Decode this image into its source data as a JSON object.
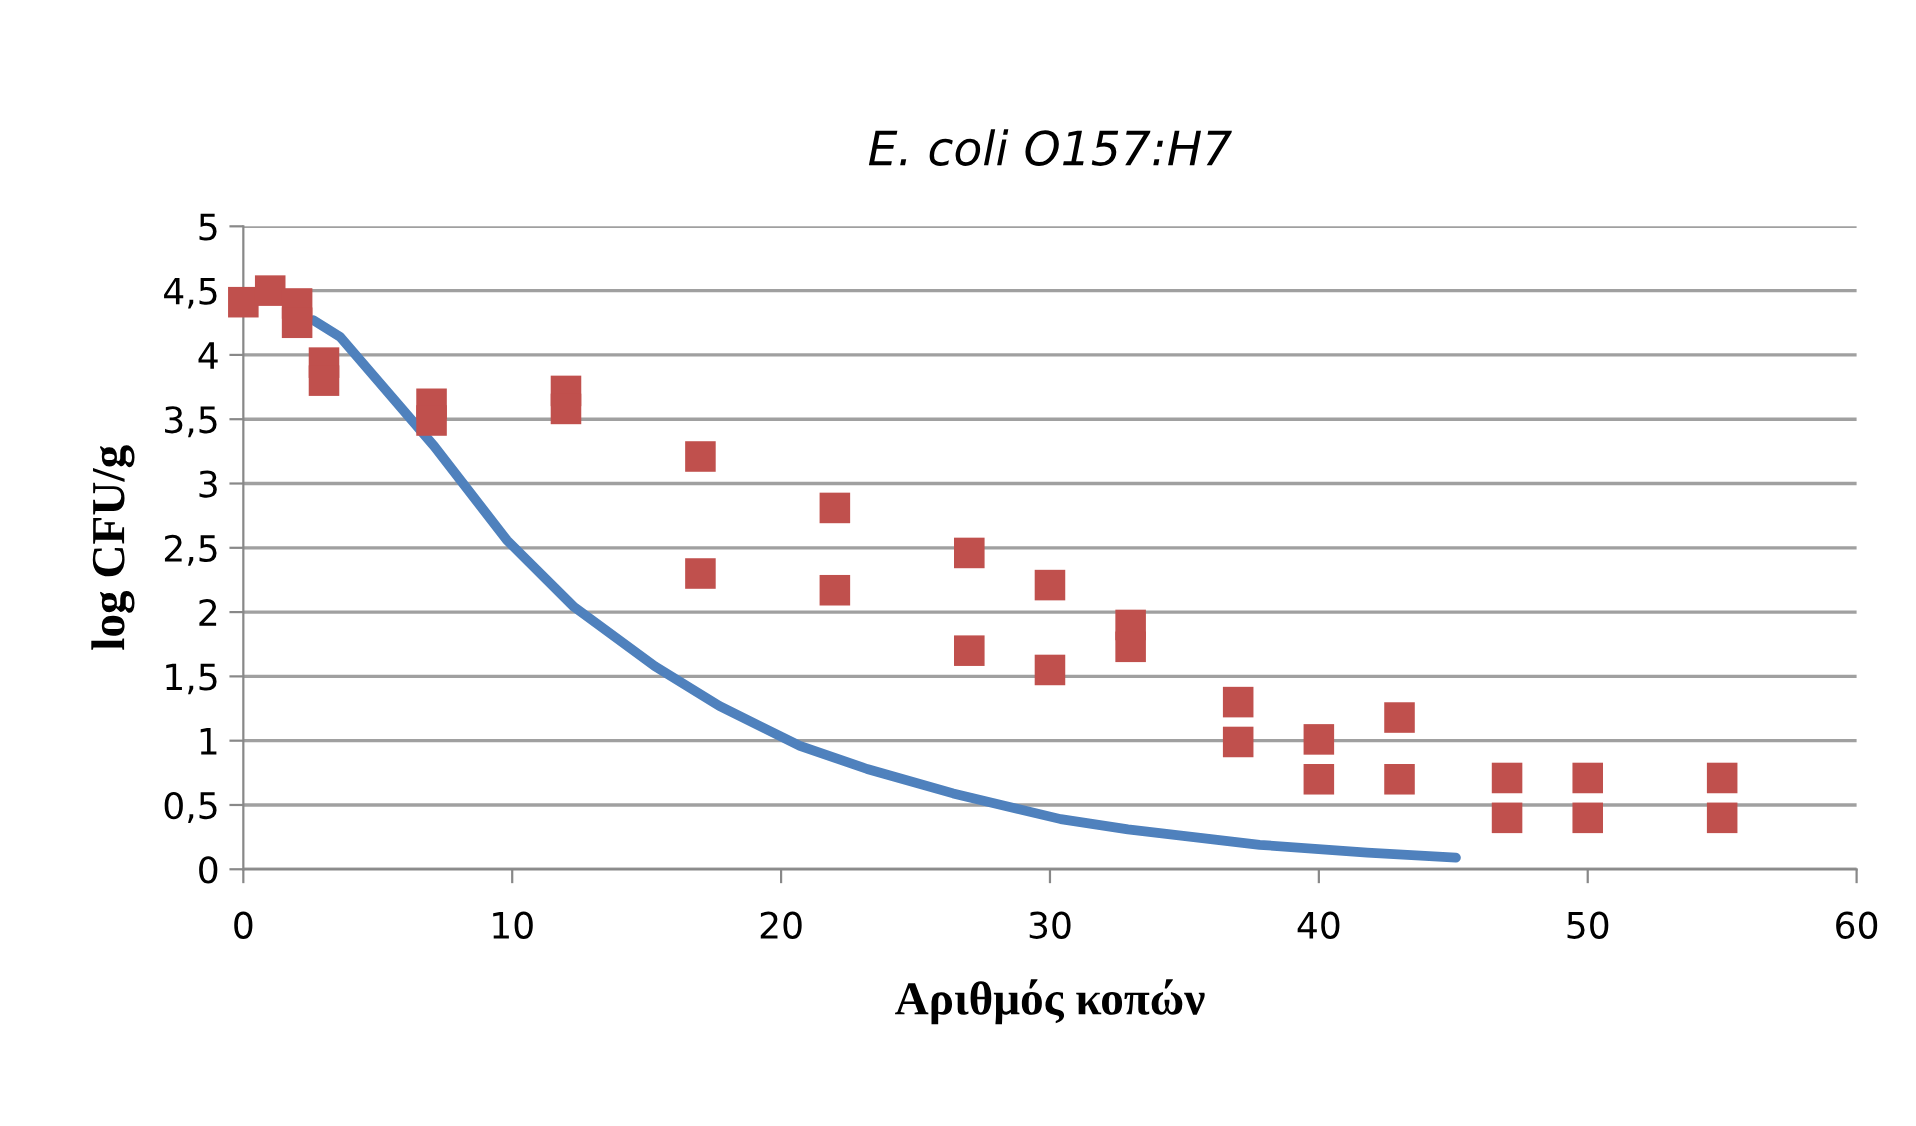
{
  "chart_data": {
    "type": "scatter",
    "title": "E. coli O157:H7",
    "xlabel": "Αριθμός κοπών",
    "ylabel": "log CFU/g",
    "series": [
      {
        "type": "scatter",
        "color": "#c0504d",
        "marker": "square",
        "x": [
          0,
          1,
          2,
          2,
          3,
          3,
          7,
          7,
          12,
          12,
          17,
          17,
          22,
          22,
          27,
          27,
          30,
          30,
          33,
          33,
          37,
          37,
          40,
          40,
          43,
          43,
          47,
          47,
          50,
          50,
          55,
          55
        ],
        "values": [
          4.41,
          4.5,
          4.4,
          4.25,
          3.94,
          3.8,
          3.62,
          3.49,
          3.72,
          3.58,
          3.21,
          2.3,
          2.81,
          2.17,
          2.46,
          1.7,
          2.21,
          1.55,
          1.9,
          1.73,
          1.3,
          0.99,
          1.01,
          0.7,
          1.18,
          0.7,
          0.71,
          0.4,
          0.71,
          0.4,
          0.71,
          0.4
        ]
      },
      {
        "type": "line",
        "color": "#4f81bd",
        "marker": "none",
        "line_style": "solid",
        "x": [
          2.6,
          3.6,
          5,
          7.1,
          9.8,
          12.3,
          15.3,
          17.7,
          20.7,
          23.2,
          26.4,
          30.4,
          32.9,
          37.8,
          41.8,
          45.1
        ],
        "values": [
          4.27,
          4.14,
          3.8,
          3.29,
          2.56,
          2.04,
          1.58,
          1.27,
          0.96,
          0.78,
          0.59,
          0.39,
          0.31,
          0.19,
          0.13,
          0.09
        ]
      }
    ],
    "xlim": [
      0,
      60
    ],
    "xticks": [
      0,
      10,
      20,
      30,
      40,
      50,
      60
    ],
    "ylim": [
      0,
      5
    ],
    "yticks": [
      0,
      {
        "value": 0.5,
        "label": "0,5"
      },
      1,
      {
        "value": 1.5,
        "label": "1,5"
      },
      2,
      {
        "value": 2.5,
        "label": "2,5"
      },
      3,
      {
        "value": 3.5,
        "label": "3,5"
      },
      4,
      {
        "value": 4.5,
        "label": "4,5"
      },
      5
    ],
    "grid": "y",
    "legend": false
  }
}
